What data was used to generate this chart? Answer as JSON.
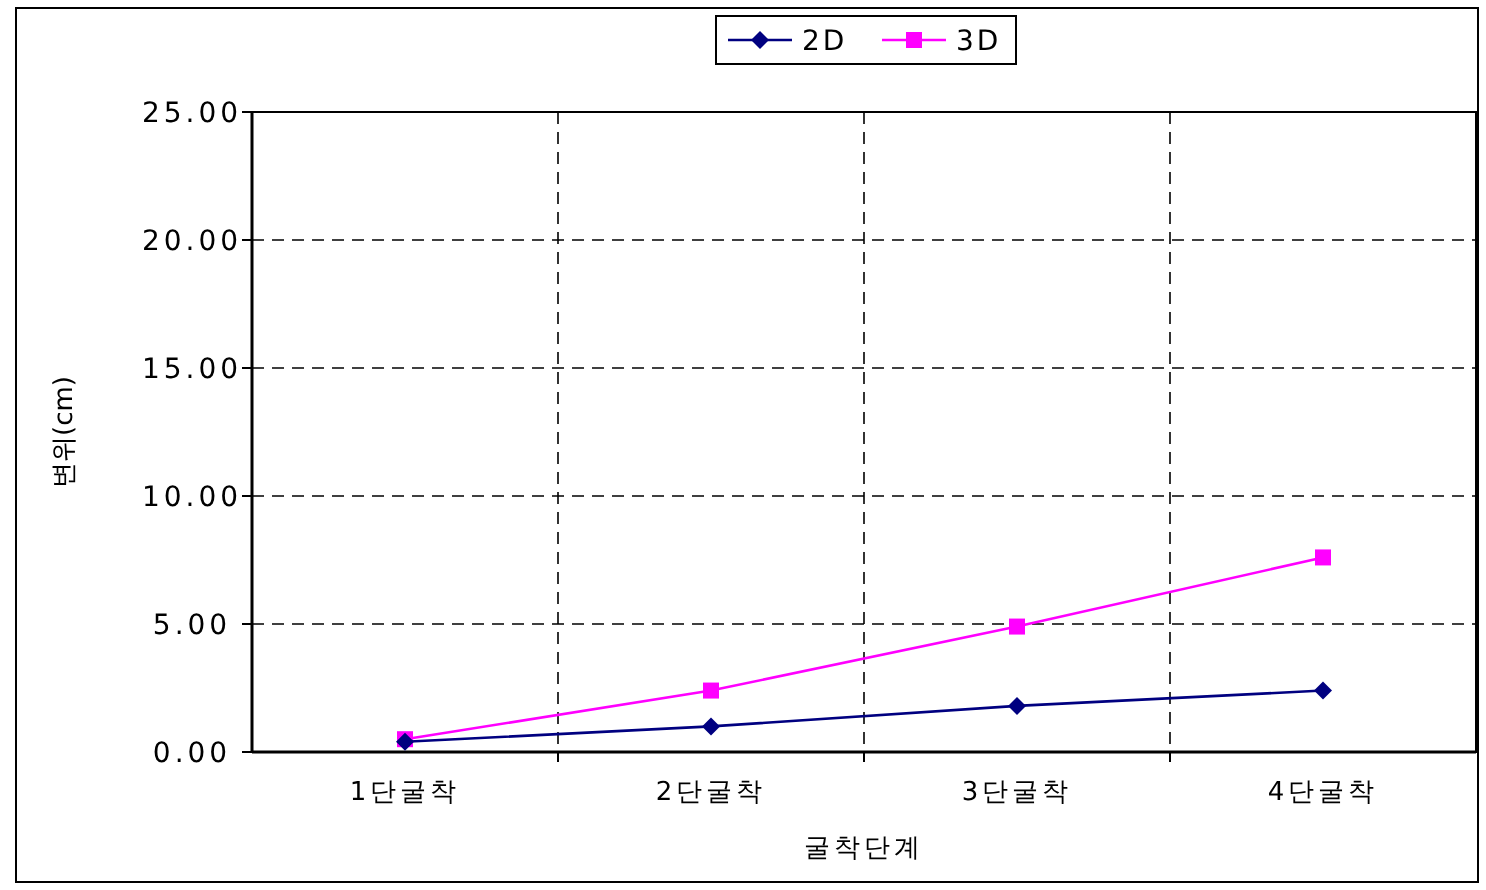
{
  "chart_data": {
    "type": "line",
    "xlabel": "굴착단계",
    "ylabel": "변위(cm)",
    "categories": [
      "1단굴착",
      "2단굴착",
      "3단굴착",
      "4단굴착"
    ],
    "series": [
      {
        "name": "2D",
        "color": "#000080",
        "marker": "diamond",
        "values": [
          0.4,
          1.0,
          1.8,
          2.4
        ]
      },
      {
        "name": "3D",
        "color": "#ff00ff",
        "marker": "square",
        "values": [
          0.5,
          2.4,
          4.9,
          7.6
        ]
      }
    ],
    "ylim": [
      0,
      25
    ],
    "yticks": [
      {
        "value": 0,
        "label": "0.00"
      },
      {
        "value": 5,
        "label": "5.00"
      },
      {
        "value": 10,
        "label": "10.00"
      },
      {
        "value": 15,
        "label": "15.00"
      },
      {
        "value": 20,
        "label": "20.00"
      },
      {
        "value": 25,
        "label": "25.00"
      }
    ],
    "grid": true,
    "legend": "top",
    "line_style": "solid"
  }
}
